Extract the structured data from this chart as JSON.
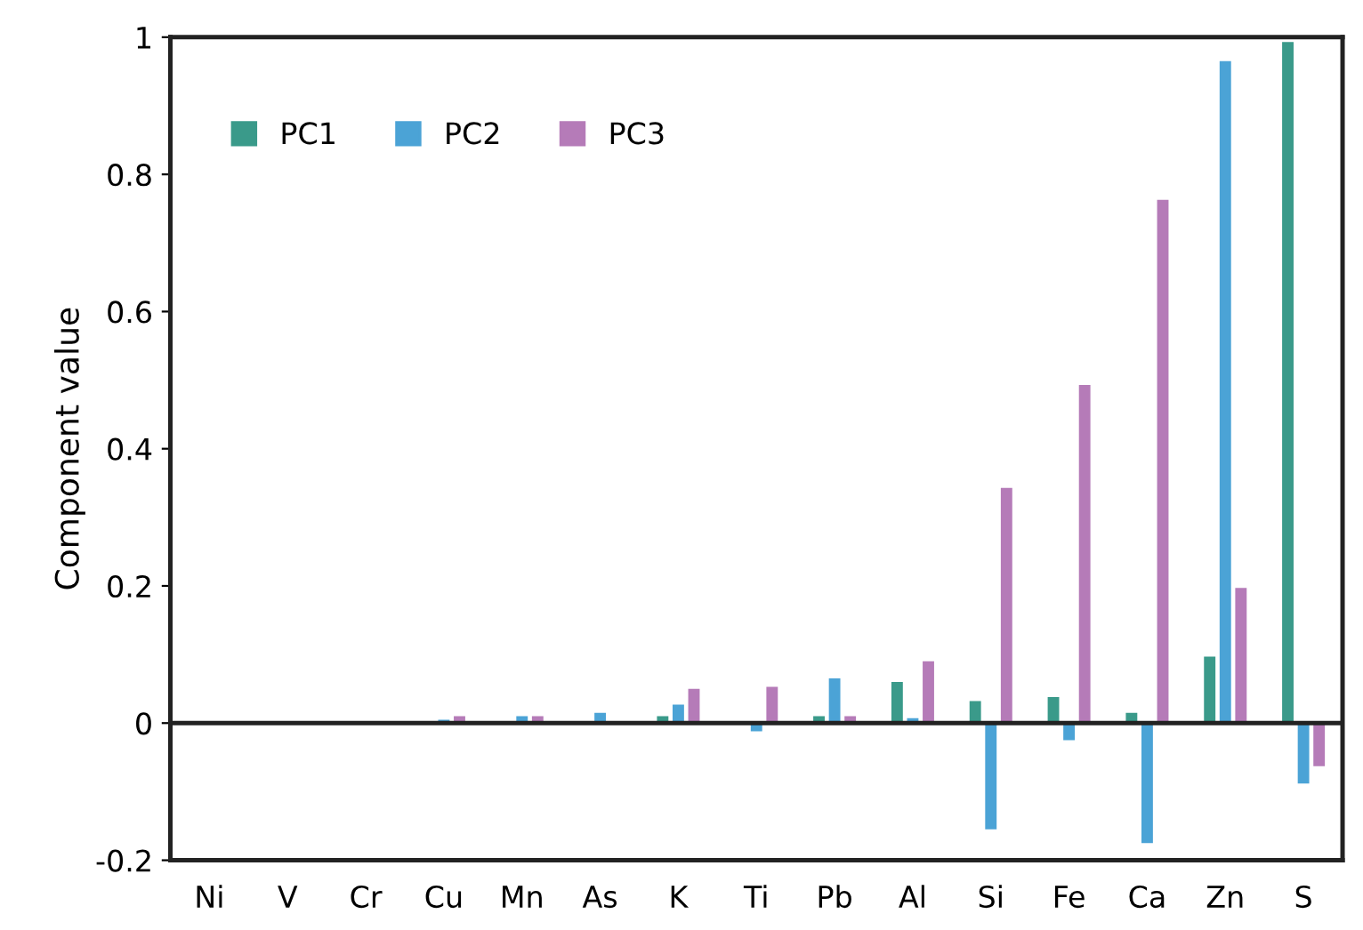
{
  "chart_data": {
    "type": "bar",
    "ylabel": "Component value",
    "categories": [
      "Ni",
      "V",
      "Cr",
      "Cu",
      "Mn",
      "As",
      "K",
      "Ti",
      "Pb",
      "Al",
      "Si",
      "Fe",
      "Ca",
      "Zn",
      "S"
    ],
    "series": [
      {
        "name": "PC1",
        "color": "#3a9a8a",
        "values": [
          0,
          0,
          0,
          0,
          0,
          0,
          0.01,
          0,
          0.01,
          0.06,
          0.032,
          0.038,
          0.015,
          0.097,
          0.993
        ]
      },
      {
        "name": "PC2",
        "color": "#4ba3d6",
        "values": [
          0,
          0,
          0,
          0.005,
          0.01,
          0.015,
          0.027,
          -0.012,
          0.065,
          0.007,
          -0.155,
          -0.025,
          -0.175,
          0.965,
          -0.088
        ]
      },
      {
        "name": "PC3",
        "color": "#b57bb8",
        "values": [
          0,
          0,
          0,
          0.01,
          0.01,
          0,
          0.05,
          0.053,
          0.01,
          0.09,
          0.343,
          0.493,
          0.763,
          0.197,
          -0.063
        ]
      }
    ],
    "ylim": [
      -0.2,
      1
    ],
    "yticks": [
      -0.2,
      0,
      0.2,
      0.4,
      0.6,
      0.8,
      1
    ],
    "ref_lines": [
      {
        "axis": "y",
        "value": 0,
        "color": "#222222"
      }
    ],
    "grid": false,
    "legend": "top left"
  }
}
